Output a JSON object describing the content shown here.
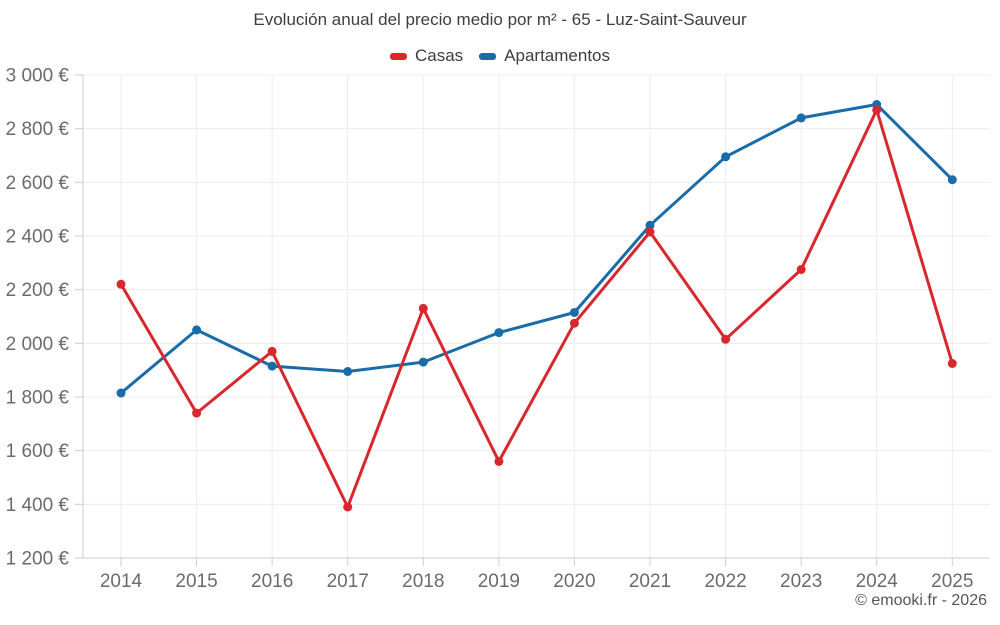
{
  "title": "Evolución anual del precio medio por m² - 65 - Luz-Saint-Sauveur",
  "footer": "© emooki.fr - 2026",
  "colors": {
    "casas": "#d8282d",
    "apartamentos": "#1a6ca8",
    "gridline": "#ececec",
    "axis_line": "#cccccc",
    "axis_label": "#6b6b6b",
    "title_text": "#3e3e3e"
  },
  "chart_data": {
    "type": "line",
    "title": "Evolución anual del precio medio por m² - 65 - Luz-Saint-Sauveur",
    "categories": [
      "2014",
      "2015",
      "2016",
      "2017",
      "2018",
      "2019",
      "2020",
      "2021",
      "2022",
      "2023",
      "2024",
      "2025"
    ],
    "series": [
      {
        "name": "Casas",
        "color": "#d8282d",
        "values": [
          2220,
          1740,
          1970,
          1390,
          2130,
          1560,
          2075,
          2415,
          2015,
          2275,
          2870,
          1925
        ]
      },
      {
        "name": "Apartamentos",
        "color": "#1a6ca8",
        "values": [
          1815,
          2050,
          1915,
          1895,
          1930,
          2040,
          2115,
          2440,
          2695,
          2840,
          2890,
          2610
        ]
      }
    ],
    "ylabel": "",
    "xlabel": "",
    "ylim": [
      1200,
      3000
    ],
    "ytick_step": 200,
    "ytick_format": "{value} €",
    "grid": true,
    "legend_position": "top",
    "markers": true
  }
}
